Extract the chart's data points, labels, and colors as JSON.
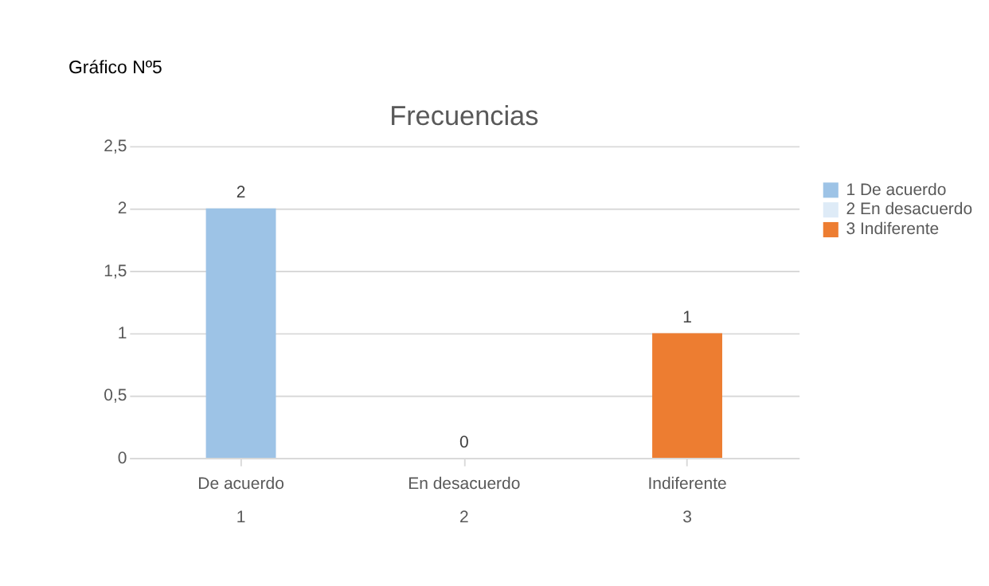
{
  "chart_data": {
    "type": "bar",
    "title": "Frecuencias",
    "annotations": [
      "Gráfico Nº5"
    ],
    "categories": [
      "De acuerdo\n1",
      "En desacuerdo\n2",
      "Indiferente\n3"
    ],
    "series": [
      {
        "name": "1 De acuerdo",
        "color": "#9dc3e6",
        "values": [
          2,
          null,
          null
        ]
      },
      {
        "name": "2 En desacuerdo",
        "color": "#deebf7",
        "values": [
          null,
          0,
          null
        ]
      },
      {
        "name": "3 Indiferente",
        "color": "#ed7d31",
        "values": [
          null,
          null,
          1
        ]
      }
    ],
    "ylim": [
      0,
      2.5
    ],
    "yticks": [
      0,
      {
        "value": 0.5,
        "label": "0,5"
      },
      1,
      {
        "value": 1.5,
        "label": "1,5"
      },
      2,
      {
        "value": 2.5,
        "label": "2,5"
      }
    ],
    "grid": "y",
    "legend": "right",
    "data_labels": true
  }
}
